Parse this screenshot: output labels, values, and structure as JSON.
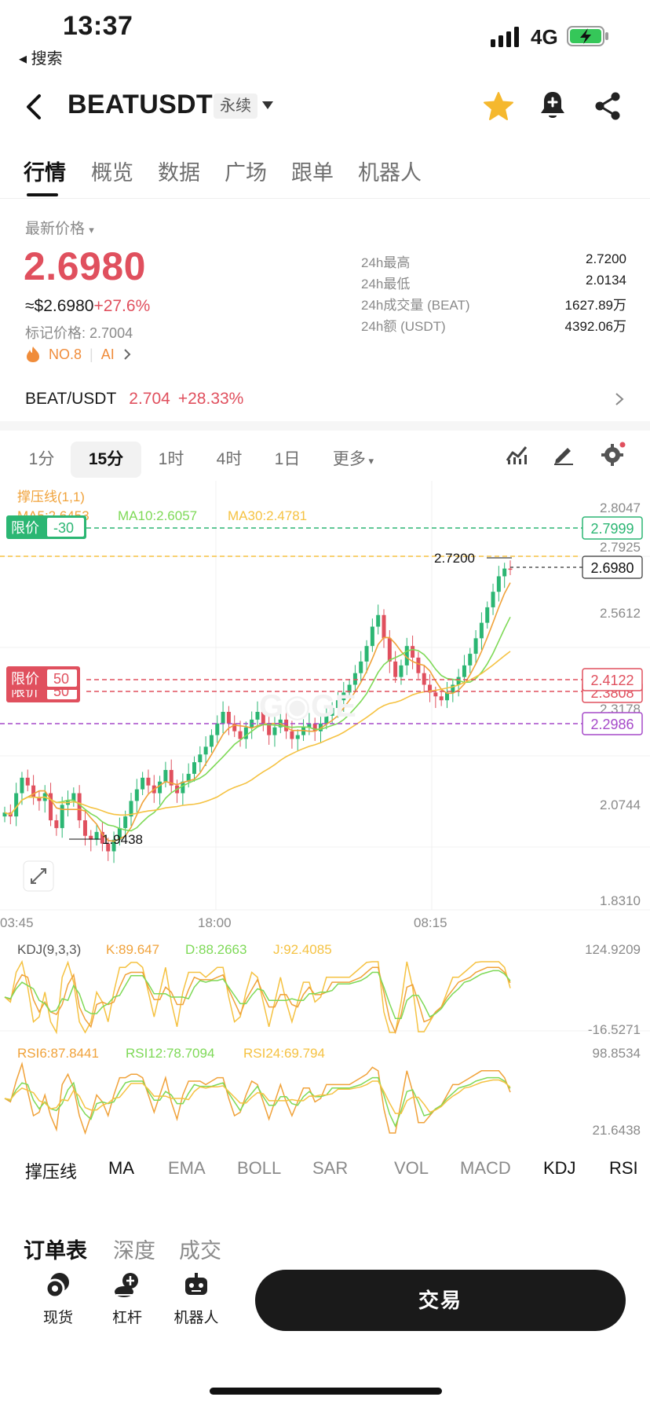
{
  "status_bar": {
    "time": "13:37",
    "back_label": "◂ 搜索",
    "network": "4G"
  },
  "header": {
    "symbol": "BEATUSDT",
    "contract_type": "永续"
  },
  "tabs": [
    "行情",
    "概览",
    "数据",
    "广场",
    "跟单",
    "机器人"
  ],
  "price": {
    "label": "最新价格",
    "last": "2.6980",
    "usd": "≈$2.6980",
    "change_pct": "+27.6%",
    "mark_label": "标记价格:",
    "mark": "2.7004",
    "rank": "NO.8",
    "ai": "AI"
  },
  "stats": [
    {
      "k": "24h最高",
      "v": "2.7200"
    },
    {
      "k": "24h最低",
      "v": "2.0134"
    },
    {
      "k": "24h成交量 (BEAT)",
      "v": "1627.89万"
    },
    {
      "k": "24h额 (USDT)",
      "v": "4392.06万"
    }
  ],
  "spot": {
    "pair": "BEAT/USDT",
    "price": "2.704",
    "change": "+28.33%"
  },
  "intervals": [
    "1分",
    "15分",
    "1时",
    "4时",
    "1日",
    "更多"
  ],
  "chart_data": {
    "type": "candlestick",
    "interval": "15分",
    "indicator_label": "撑压线(1,1)",
    "ma": {
      "ma5_label": "MA5:2.6453",
      "ma10_label": "MA10:2.6057",
      "ma30_label": "MA30:2.4781"
    },
    "y_ticks": [
      "2.8047",
      "2.7925",
      "2.5612",
      "2.3178",
      "2.0744",
      "1.8310"
    ],
    "x_ticks": [
      "03:45",
      "18:00",
      "08:15"
    ],
    "max_label": "2.7200",
    "min_label": "1.9438",
    "price_lines": [
      {
        "tag": "限价",
        "qty": "-30",
        "price": "2.7999",
        "color": "#2bb673"
      },
      {
        "tag": "",
        "qty": "",
        "price": "2.6980",
        "color": "#333333"
      },
      {
        "tag": "限价",
        "qty": "50",
        "price": "2.4122",
        "color": "#e0505e"
      },
      {
        "tag": "限价",
        "qty": "50",
        "price": "2.3808",
        "color": "#e0505e"
      },
      {
        "tag": "",
        "qty": "",
        "price": "2.2986",
        "color": "#a64ac9"
      }
    ],
    "ylim": [
      1.831,
      2.8047
    ],
    "kdj": {
      "label": "KDJ(9,3,3)",
      "k": "K:89.647",
      "d": "D:88.2663",
      "j": "J:92.4085",
      "max": "124.9209",
      "min": "-16.5271"
    },
    "rsi": {
      "r6": "RSI6:87.8441",
      "r12": "RSI12:78.7094",
      "r24": "RSI24:69.794",
      "max": "98.8534",
      "min": "21.6438"
    },
    "close_series": [
      2.07,
      2.06,
      2.12,
      2.16,
      2.14,
      2.11,
      2.1,
      2.12,
      2.05,
      2.03,
      2.09,
      2.1,
      2.12,
      2.05,
      2.01,
      2.0,
      2.02,
      1.99,
      1.97,
      2.0,
      2.03,
      2.06,
      2.1,
      2.13,
      2.16,
      2.14,
      2.12,
      2.15,
      2.18,
      2.14,
      2.12,
      2.15,
      2.17,
      2.2,
      2.22,
      2.24,
      2.27,
      2.3,
      2.33,
      2.3,
      2.28,
      2.26,
      2.29,
      2.31,
      2.33,
      2.3,
      2.27,
      2.29,
      2.31,
      2.28,
      2.26,
      2.27,
      2.29,
      2.3,
      2.28,
      2.3,
      2.32,
      2.34,
      2.36,
      2.38,
      2.4,
      2.43,
      2.46,
      2.5,
      2.55,
      2.58,
      2.52,
      2.46,
      2.42,
      2.45,
      2.5,
      2.47,
      2.43,
      2.4,
      2.38,
      2.37,
      2.36,
      2.38,
      2.4,
      2.42,
      2.45,
      2.48,
      2.52,
      2.56,
      2.6,
      2.64,
      2.68,
      2.7,
      2.698
    ],
    "colors": {
      "up": "#2bb673",
      "down": "#e0505e",
      "ma5": "#f0a23a",
      "ma10": "#7ed957",
      "ma30": "#f5c242"
    }
  },
  "indicators": [
    "撑压线",
    "MA",
    "EMA",
    "BOLL",
    "SAR",
    "VOL",
    "MACD",
    "KDJ",
    "RSI"
  ],
  "bottom_tabs": [
    "订单表",
    "深度",
    "成交"
  ],
  "dock": [
    "现货",
    "杠杆",
    "机器人"
  ],
  "trade_label": "交易"
}
